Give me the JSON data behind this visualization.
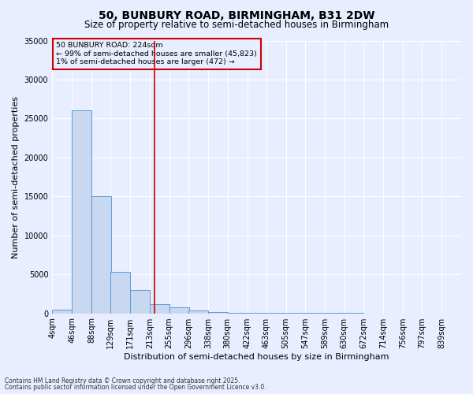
{
  "title": "50, BUNBURY ROAD, BIRMINGHAM, B31 2DW",
  "subtitle": "Size of property relative to semi-detached houses in Birmingham",
  "xlabel": "Distribution of semi-detached houses by size in Birmingham",
  "ylabel": "Number of semi-detached properties",
  "footnote1": "Contains HM Land Registry data © Crown copyright and database right 2025.",
  "footnote2": "Contains public sector information licensed under the Open Government Licence v3.0.",
  "annotation_line1": "50 BUNBURY ROAD: 224sqm",
  "annotation_line2": "← 99% of semi-detached houses are smaller (45,823)",
  "annotation_line3": "1% of semi-detached houses are larger (472) →",
  "property_size": 224,
  "bin_labels": [
    "4sqm",
    "46sqm",
    "88sqm",
    "129sqm",
    "171sqm",
    "213sqm",
    "255sqm",
    "296sqm",
    "338sqm",
    "380sqm",
    "422sqm",
    "463sqm",
    "505sqm",
    "547sqm",
    "589sqm",
    "630sqm",
    "672sqm",
    "714sqm",
    "756sqm",
    "797sqm",
    "839sqm"
  ],
  "bin_edges": [
    4,
    46,
    88,
    129,
    171,
    213,
    255,
    296,
    338,
    380,
    422,
    463,
    505,
    547,
    589,
    630,
    672,
    714,
    756,
    797,
    839
  ],
  "bar_heights": [
    500,
    26000,
    15000,
    5300,
    3000,
    1200,
    800,
    400,
    200,
    100,
    60,
    40,
    30,
    20,
    15,
    10,
    8,
    5,
    3,
    2,
    1
  ],
  "bar_color": "#c8d8f0",
  "bar_edge_color": "#5b9bd5",
  "highlight_line_color": "#cc0000",
  "annotation_box_color": "#cc0000",
  "ylim": [
    0,
    35000
  ],
  "yticks": [
    0,
    5000,
    10000,
    15000,
    20000,
    25000,
    30000,
    35000
  ],
  "background_color": "#e8eeff",
  "grid_color": "#ffffff",
  "title_fontsize": 10,
  "subtitle_fontsize": 8.5,
  "axis_label_fontsize": 8,
  "tick_fontsize": 7,
  "footnote_fontsize": 5.5
}
